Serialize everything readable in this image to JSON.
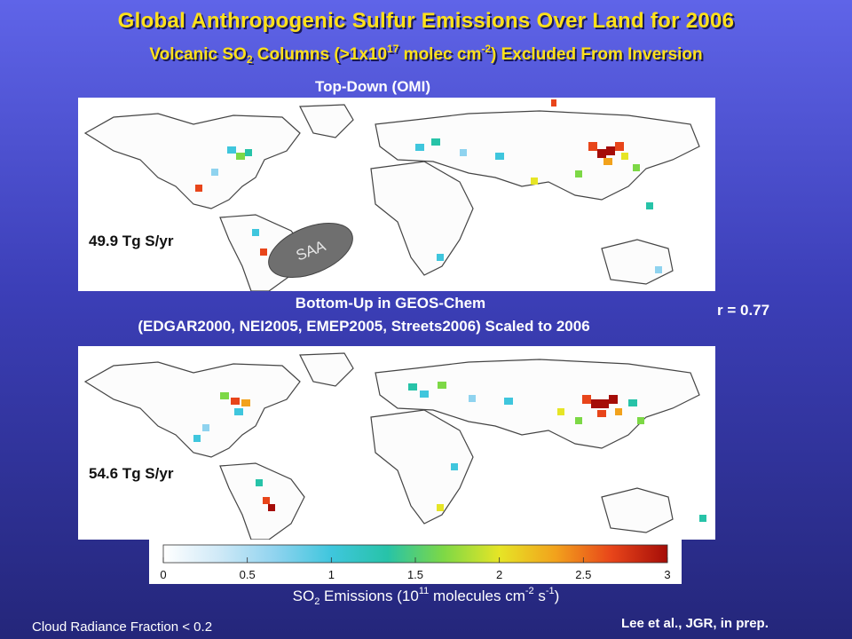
{
  "title": "Global Anthropogenic Sulfur Emissions Over Land for 2006",
  "subtitle": {
    "p1": "Volcanic SO",
    "p1_sub": "2",
    "p2": " Columns (>1x10",
    "p2_sup": "17",
    "p3": " molec cm",
    "p3_sup": "-2",
    "p4": ") Excluded From Inversion"
  },
  "top_map": {
    "label": "Top-Down (OMI)",
    "total": "49.9 Tg S/yr",
    "anomaly_label": "SAA"
  },
  "bottom_map": {
    "label_line1": "Bottom-Up in GEOS-Chem",
    "label_line2": "(EDGAR2000, NEI2005, EMEP2005, Streets2006) Scaled to 2006",
    "total": "54.6 Tg S/yr"
  },
  "correlation": "r = 0.77",
  "colorbar": {
    "ticks": [
      "0",
      "0.5",
      "1",
      "1.5",
      "2",
      "2.5",
      "3"
    ],
    "min": 0,
    "max": 3,
    "colors": [
      "#ffffff",
      "#cfe9f7",
      "#8fd3ef",
      "#3fc6dd",
      "#27c3a8",
      "#7dd846",
      "#e6e526",
      "#f2a21c",
      "#e8451a",
      "#a50d08"
    ],
    "label": {
      "p1": "SO",
      "p1_sub": "2",
      "p2": " Emissions (10",
      "p2_sup": "11",
      "p3": " molecules cm",
      "p3_sup": "-2",
      "p4": " s",
      "p4_sup": "-1",
      "p5": ")"
    }
  },
  "footnote_left": "Cloud Radiance Fraction < 0.2",
  "footnote_right": "Lee et al., JGR, in prep."
}
